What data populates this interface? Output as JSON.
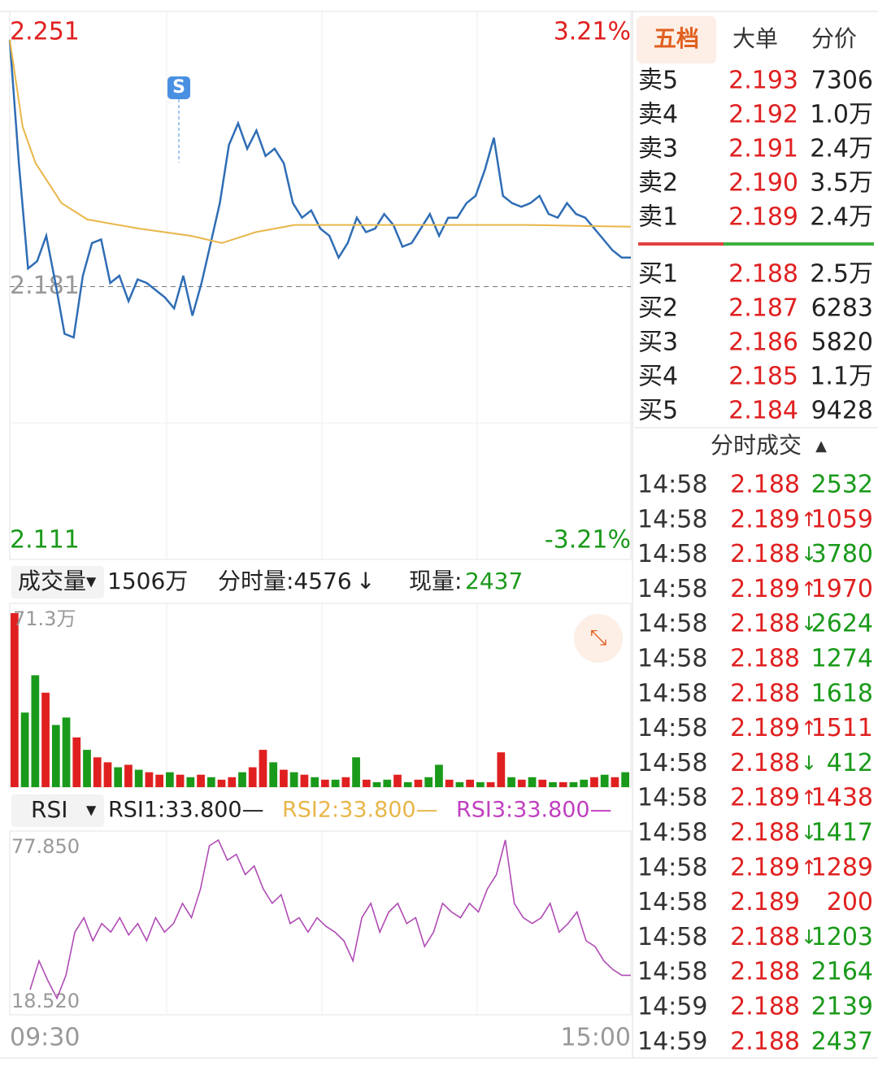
{
  "chart_data": [
    {
      "type": "line",
      "xlim": [
        0,
        240
      ],
      "ylim": [
        2.111,
        2.251
      ],
      "yticks": [
        2.251,
        2.181,
        2.111
      ],
      "baseline": 2.181,
      "y2lim": [
        -3.21,
        3.21
      ],
      "y2ticks": [
        {
          "value": 3.21,
          "label": "3.21%"
        },
        {
          "value": -3.21,
          "label": "-3.21%"
        }
      ],
      "annotation": "S",
      "series": [
        {
          "color": "#2f6db5",
          "values": [
            2.249,
            2.215,
            2.186,
            2.188,
            2.195,
            2.182,
            2.168,
            2.167,
            2.184,
            2.193,
            2.194,
            2.182,
            2.184,
            2.177,
            2.183,
            2.182,
            2.18,
            2.178,
            2.175,
            2.184,
            2.173,
            2.182,
            2.193,
            2.204,
            2.22,
            2.226,
            2.219,
            2.224,
            2.217,
            2.219,
            2.215,
            2.204,
            2.2,
            2.202,
            2.197,
            2.195,
            2.189,
            2.193,
            2.2,
            2.196,
            2.197,
            2.201,
            2.198,
            2.192,
            2.193,
            2.197,
            2.201,
            2.195,
            2.2,
            2.2,
            2.204,
            2.206,
            2.213,
            2.222,
            2.206,
            2.204,
            2.203,
            2.204,
            2.206,
            2.201,
            2.2,
            2.204,
            2.201,
            2.2,
            2.197,
            2.194,
            2.191,
            2.189,
            2.189
          ]
        },
        {
          "color": "#e8b64a",
          "x": [
            0,
            5,
            10,
            20,
            30,
            50,
            70,
            82,
            95,
            110,
            140,
            200,
            240
          ],
          "values": [
            2.249,
            2.225,
            2.215,
            2.204,
            2.1995,
            2.197,
            2.195,
            2.193,
            2.196,
            2.198,
            2.198,
            2.198,
            2.1975
          ]
        }
      ],
      "xlabels": [
        "09:30",
        "15:00"
      ]
    },
    {
      "type": "bar",
      "ylim": [
        0,
        71.3
      ],
      "yticks": [
        {
          "value": 71.3,
          "label": "71.3万"
        }
      ],
      "values": [
        70,
        30,
        45,
        38,
        25,
        28,
        20,
        15,
        12,
        10,
        8,
        9,
        7,
        6,
        5,
        6,
        5,
        4,
        5,
        4,
        3,
        4,
        6,
        8,
        15,
        10,
        7,
        6,
        5,
        4,
        3,
        3,
        4,
        12,
        3,
        2,
        3,
        5,
        2,
        3,
        4,
        9,
        3,
        2,
        3,
        2,
        2,
        14,
        4,
        3,
        4,
        3,
        2,
        2,
        2,
        3,
        4,
        5,
        4,
        6
      ],
      "colors": [
        "#e02020",
        "#1a9a1a",
        "#1a9a1a",
        "#e02020",
        "#1a9a1a",
        "#1a9a1a",
        "#e02020",
        "#1a9a1a",
        "#e02020",
        "#e02020",
        "#1a9a1a",
        "#e02020",
        "#1a9a1a",
        "#e02020",
        "#e02020",
        "#1a9a1a",
        "#e02020",
        "#1a9a1a",
        "#e02020",
        "#1a9a1a",
        "#e02020",
        "#e02020",
        "#1a9a1a",
        "#e02020",
        "#e02020",
        "#1a9a1a",
        "#e02020",
        "#1a9a1a",
        "#e02020",
        "#1a9a1a",
        "#e02020",
        "#1a9a1a",
        "#e02020",
        "#1a9a1a",
        "#e02020",
        "#1a9a1a",
        "#1a9a1a",
        "#e02020",
        "#1a9a1a",
        "#e02020",
        "#1a9a1a",
        "#1a9a1a",
        "#e02020",
        "#1a9a1a",
        "#e02020",
        "#1a9a1a",
        "#e02020",
        "#e02020",
        "#1a9a1a",
        "#e02020",
        "#1a9a1a",
        "#e02020",
        "#1a9a1a",
        "#e02020",
        "#1a9a1a",
        "#1a9a1a",
        "#e02020",
        "#1a9a1a",
        "#e02020",
        "#1a9a1a"
      ]
    },
    {
      "type": "line",
      "ylim": [
        18.52,
        77.85
      ],
      "yticks": [
        {
          "value": 77.85,
          "label": "77.850"
        },
        {
          "value": 18.52,
          "label": "18.520"
        }
      ],
      "series": [
        {
          "color": "#b04bb5",
          "values": [
            25,
            35,
            28,
            22,
            30,
            45,
            50,
            42,
            48,
            45,
            50,
            44,
            48,
            42,
            50,
            45,
            48,
            55,
            50,
            60,
            75,
            77,
            70,
            72,
            65,
            68,
            60,
            55,
            58,
            48,
            50,
            45,
            50,
            47,
            45,
            42,
            35,
            50,
            55,
            45,
            52,
            55,
            48,
            50,
            40,
            45,
            55,
            52,
            50,
            55,
            52,
            60,
            65,
            77,
            55,
            50,
            48,
            50,
            55,
            45,
            48,
            52,
            42,
            40,
            35,
            32,
            30,
            30
          ]
        }
      ]
    }
  ],
  "tabs": [
    "五档",
    "大单",
    "分价"
  ],
  "volume_header": {
    "selector": "成交量",
    "total": "1506万",
    "period_label": "分时量:4576",
    "arrow": "↓",
    "current_label": "现量:",
    "current": "2437"
  },
  "rsi_header": {
    "selector": "RSI",
    "rsi1": "RSI1:33.800—",
    "rsi2": "RSI2:33.800—",
    "rsi3": "RSI3:33.800—"
  },
  "sell": [
    [
      "卖5",
      "2.193",
      "7306"
    ],
    [
      "卖4",
      "2.192",
      "1.0万"
    ],
    [
      "卖3",
      "2.191",
      "2.4万"
    ],
    [
      "卖2",
      "2.190",
      "3.5万"
    ],
    [
      "卖1",
      "2.189",
      "2.4万"
    ]
  ],
  "buy": [
    [
      "买1",
      "2.188",
      "2.5万"
    ],
    [
      "买2",
      "2.187",
      "6283"
    ],
    [
      "买3",
      "2.186",
      "5820"
    ],
    [
      "买4",
      "2.185",
      "1.1万"
    ],
    [
      "买5",
      "2.184",
      "9428"
    ]
  ],
  "ticks_title": "分时成交",
  "ticks": [
    {
      "time": "14:58",
      "price": "2.188",
      "volume": "2532",
      "color": "#1a9a1a"
    },
    {
      "time": "14:58",
      "price": "2.189",
      "arrow": "↑",
      "volume": "1059",
      "color": "#e02020"
    },
    {
      "time": "14:58",
      "price": "2.188",
      "arrow": "↓",
      "volume": "3780",
      "color": "#1a9a1a"
    },
    {
      "time": "14:58",
      "price": "2.189",
      "arrow": "↑",
      "volume": "1970",
      "color": "#e02020"
    },
    {
      "time": "14:58",
      "price": "2.188",
      "arrow": "↓",
      "volume": "2624",
      "color": "#1a9a1a"
    },
    {
      "time": "14:58",
      "price": "2.188",
      "volume": "1274",
      "color": "#1a9a1a"
    },
    {
      "time": "14:58",
      "price": "2.188",
      "volume": "1618",
      "color": "#1a9a1a"
    },
    {
      "time": "14:58",
      "price": "2.189",
      "arrow": "↑",
      "volume": "1511",
      "color": "#e02020"
    },
    {
      "time": "14:58",
      "price": "2.188",
      "arrow": "↓",
      "volume": "412",
      "color": "#1a9a1a"
    },
    {
      "time": "14:58",
      "price": "2.189",
      "arrow": "↑",
      "volume": "1438",
      "color": "#e02020"
    },
    {
      "time": "14:58",
      "price": "2.188",
      "arrow": "↓",
      "volume": "1417",
      "color": "#1a9a1a"
    },
    {
      "time": "14:58",
      "price": "2.189",
      "arrow": "↑",
      "volume": "1289",
      "color": "#e02020"
    },
    {
      "time": "14:58",
      "price": "2.189",
      "volume": "200",
      "color": "#e02020"
    },
    {
      "time": "14:58",
      "price": "2.188",
      "arrow": "↓",
      "volume": "1203",
      "color": "#1a9a1a"
    },
    {
      "time": "14:58",
      "price": "2.188",
      "volume": "2164",
      "color": "#1a9a1a"
    },
    {
      "time": "14:59",
      "price": "2.188",
      "volume": "2139",
      "color": "#1a9a1a"
    },
    {
      "time": "14:59",
      "price": "2.188",
      "volume": "2437",
      "color": "#1a9a1a"
    }
  ]
}
